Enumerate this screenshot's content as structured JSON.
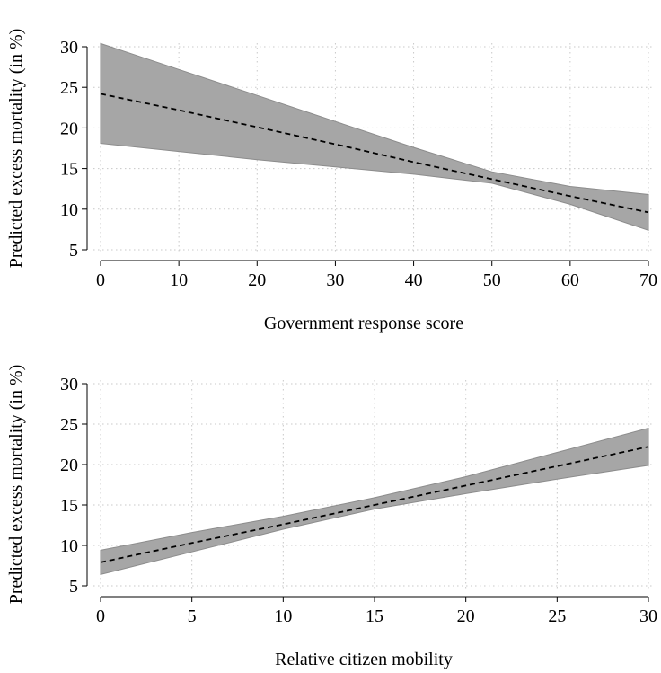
{
  "chart_data": [
    {
      "type": "line",
      "title": "",
      "xlabel": "Government response score",
      "ylabel": "Predicted excess mortality (in %)",
      "xlim": [
        0,
        70
      ],
      "ylim": [
        5,
        30
      ],
      "x_ticks": [
        0,
        10,
        20,
        30,
        40,
        50,
        60,
        70
      ],
      "y_ticks": [
        5,
        10,
        15,
        20,
        25,
        30
      ],
      "grid": true,
      "series": [
        {
          "style": "dashed",
          "x": [
            0,
            10,
            20,
            30,
            40,
            50,
            60,
            70
          ],
          "y": [
            24.2,
            22.2,
            20.1,
            18.0,
            15.8,
            13.7,
            11.6,
            9.6
          ]
        }
      ],
      "confidence_band": {
        "x": [
          0,
          10,
          20,
          30,
          40,
          50,
          60,
          70
        ],
        "lower": [
          18.1,
          17.1,
          16.1,
          15.2,
          14.3,
          13.2,
          10.6,
          7.4
        ],
        "upper": [
          30.4,
          27.2,
          24.0,
          20.8,
          17.6,
          14.6,
          12.8,
          11.8
        ]
      }
    },
    {
      "type": "line",
      "title": "",
      "xlabel": "Relative citizen mobility",
      "ylabel": "Predicted excess mortality (in %)",
      "xlim": [
        0,
        30
      ],
      "ylim": [
        5,
        30
      ],
      "x_ticks": [
        0,
        5,
        10,
        15,
        20,
        25,
        30
      ],
      "y_ticks": [
        5,
        10,
        15,
        20,
        25,
        30
      ],
      "grid": true,
      "series": [
        {
          "style": "dashed",
          "x": [
            0,
            5,
            10,
            15,
            20,
            25,
            30
          ],
          "y": [
            7.9,
            10.3,
            12.6,
            15.0,
            17.4,
            19.8,
            22.2
          ]
        }
      ],
      "confidence_band": {
        "x": [
          0,
          5,
          10,
          15,
          20,
          25,
          30
        ],
        "lower": [
          6.4,
          9.2,
          12.0,
          14.5,
          16.4,
          18.2,
          19.9
        ],
        "upper": [
          9.4,
          11.6,
          13.6,
          15.9,
          18.5,
          21.5,
          24.5
        ]
      }
    }
  ]
}
